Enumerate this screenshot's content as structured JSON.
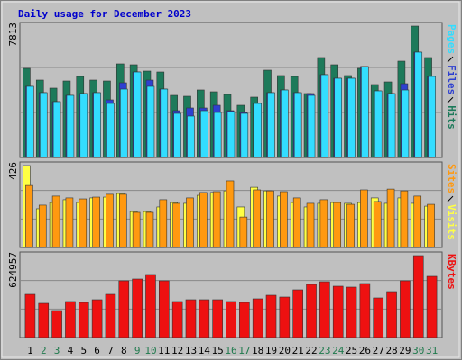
{
  "chart_data": [
    {
      "type": "bar",
      "title": "Daily usage for December 2023",
      "ylim": [
        0,
        7813
      ],
      "yticks": [
        7813
      ],
      "series": [
        {
          "name": "Hits",
          "color": "#1d7a5a",
          "values": [
            5157,
            4479,
            4011,
            4427,
            4688,
            4479,
            4427,
            5417,
            5365,
            5000,
            4948,
            3594,
            3542,
            3907,
            3802,
            3646,
            3021,
            3490,
            5052,
            4740,
            4688,
            3698,
            5782,
            5365,
            4740,
            5157,
            4219,
            4375,
            5573,
            7604,
            5782
          ]
        },
        {
          "name": "Files",
          "color": "#2e40d0",
          "values": [
            4115,
            3750,
            3229,
            3594,
            3698,
            3750,
            3333,
            4323,
            4948,
            4479,
            3958,
            2708,
            2865,
            2865,
            3021,
            2708,
            2604,
            3125,
            3750,
            3906,
            3750,
            3698,
            4792,
            4583,
            4583,
            5261,
            3854,
            3698,
            4271,
            6094,
            4688
          ]
        },
        {
          "name": "Pages",
          "color": "#33ddff",
          "values": [
            4115,
            3750,
            3229,
            3594,
            3698,
            3750,
            3125,
            3958,
            4948,
            4115,
            3958,
            2552,
            2396,
            2708,
            2604,
            2656,
            2552,
            3125,
            3750,
            3906,
            3750,
            3594,
            4792,
            4583,
            4583,
            5261,
            3854,
            3698,
            3906,
            6094,
            4688
          ]
        }
      ]
    },
    {
      "type": "bar",
      "ylim": [
        0,
        426
      ],
      "yticks": [
        426
      ],
      "series": [
        {
          "name": "Visits",
          "color": "#ffff44",
          "values": [
            408,
            193,
            224,
            238,
            224,
            247,
            251,
            269,
            179,
            179,
            202,
            224,
            220,
            260,
            274,
            282,
            202,
            300,
            282,
            256,
            224,
            202,
            220,
            224,
            220,
            224,
            247,
            220,
            247,
            220,
            206
          ]
        },
        {
          "name": "Sites",
          "color": "#ff9910",
          "values": [
            309,
            211,
            256,
            247,
            242,
            251,
            265,
            265,
            175,
            175,
            238,
            220,
            247,
            274,
            278,
            332,
            152,
            287,
            282,
            278,
            247,
            220,
            238,
            224,
            215,
            287,
            229,
            291,
            282,
            256,
            215
          ]
        }
      ]
    },
    {
      "type": "bar",
      "ylim": [
        0,
        624957
      ],
      "yticks": [
        624957
      ],
      "categories": [
        "1",
        "2",
        "3",
        "4",
        "5",
        "6",
        "7",
        "8",
        "9",
        "10",
        "11",
        "12",
        "13",
        "14",
        "15",
        "16",
        "17",
        "18",
        "19",
        "20",
        "21",
        "22",
        "23",
        "24",
        "25",
        "26",
        "27",
        "28",
        "29",
        "30",
        "31"
      ],
      "category_colors": [
        "#000000",
        "#1f7a4d",
        "#1f7a4d",
        "#000000",
        "#000000",
        "#000000",
        "#000000",
        "#000000",
        "#1f7a4d",
        "#1f7a4d",
        "#000000",
        "#000000",
        "#000000",
        "#000000",
        "#000000",
        "#1f7a4d",
        "#1f7a4d",
        "#000000",
        "#000000",
        "#000000",
        "#000000",
        "#000000",
        "#1f7a4d",
        "#1f7a4d",
        "#000000",
        "#000000",
        "#000000",
        "#000000",
        "#000000",
        "#1f7a4d",
        "#1f7a4d"
      ],
      "series": [
        {
          "name": "KBytes",
          "color": "#ee1111",
          "values": [
            315764,
            249978,
            197354,
            263140,
            256561,
            276298,
            315764,
            414446,
            427603,
            460496,
            414446,
            263140,
            276298,
            276298,
            276298,
            263140,
            256561,
            282876,
            309185,
            296032,
            348660,
            388131,
            407867,
            374972,
            368394,
            394710,
            289455,
            335502,
            414446,
            598632,
            447332
          ]
        }
      ]
    }
  ]
}
